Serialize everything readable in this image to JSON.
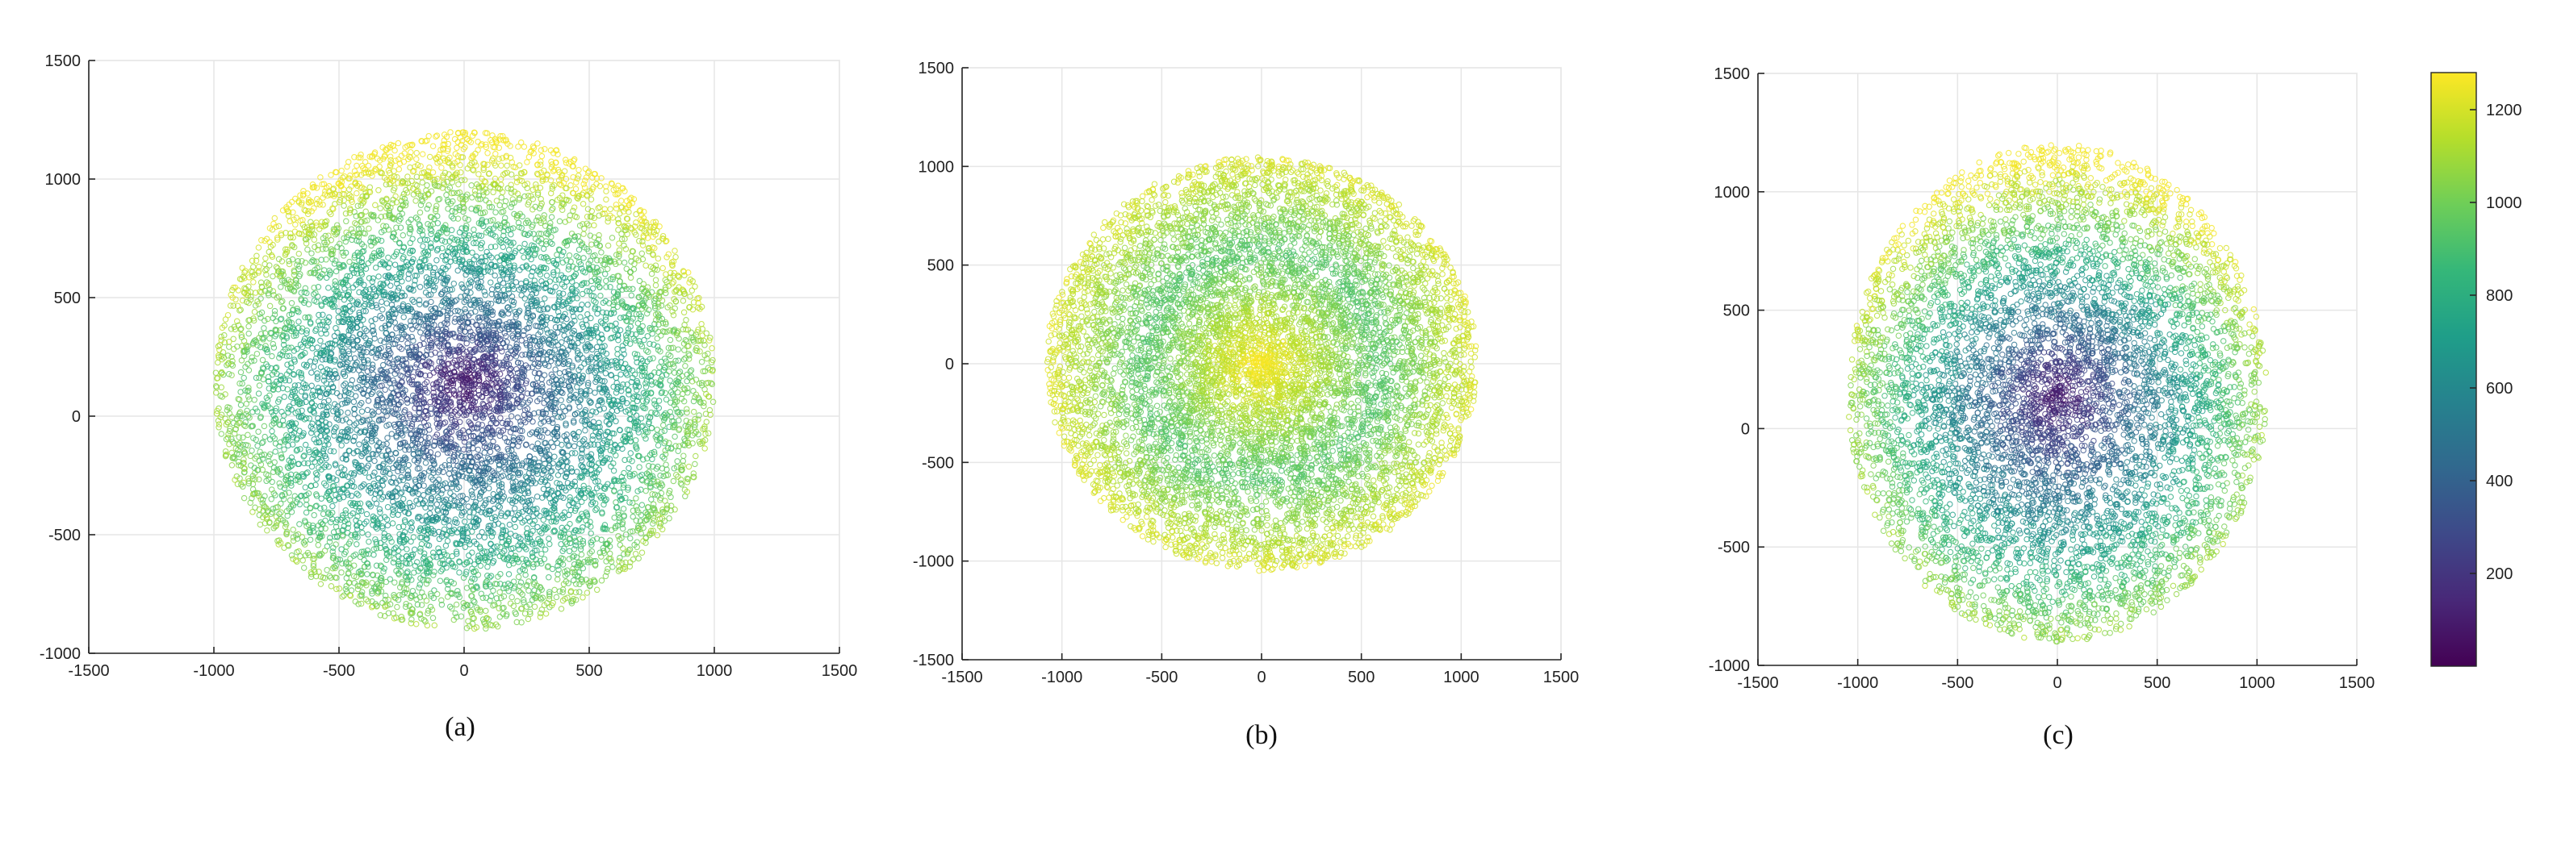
{
  "figure": {
    "colormap": "viridis",
    "colors": [
      "#440154",
      "#482878",
      "#3e4989",
      "#31688e",
      "#26828e",
      "#1f9e89",
      "#35b779",
      "#6ece58",
      "#b5de2b",
      "#fde725"
    ],
    "colorbar": {
      "min": 0,
      "max": 1280,
      "ticks": [
        "200",
        "400",
        "600",
        "800",
        "1000",
        "1200"
      ],
      "tick_values": [
        200,
        400,
        600,
        800,
        1000,
        1200
      ]
    }
  },
  "chart_data": [
    {
      "type": "scatter",
      "caption": "(a)",
      "xlim": [
        -1500,
        1500
      ],
      "ylim": [
        -1000,
        1500
      ],
      "xticks": [
        "-1500",
        "-1000",
        "-500",
        "0",
        "500",
        "1000",
        "1500"
      ],
      "xtick_values": [
        -1500,
        -1000,
        -500,
        0,
        500,
        1000,
        1500
      ],
      "yticks": [
        "-1000",
        "-500",
        "0",
        "500",
        "1000",
        "1500"
      ],
      "ytick_values": [
        -1000,
        -500,
        0,
        500,
        1000,
        1500
      ],
      "grid": true,
      "cloud": {
        "center": [
          0,
          150
        ],
        "radius_x": 1000,
        "radius_y": 1050,
        "color_min": 80,
        "color_max": 1260,
        "color_pattern": "low at center-top, high at top rim",
        "point_count_estimate": 8000
      }
    },
    {
      "type": "scatter",
      "caption": "(b)",
      "xlim": [
        -1500,
        1500
      ],
      "ylim": [
        -1500,
        1500
      ],
      "xticks": [
        "-1500",
        "-1000",
        "-500",
        "0",
        "500",
        "1000",
        "1500"
      ],
      "xtick_values": [
        -1500,
        -1000,
        -500,
        0,
        500,
        1000,
        1500
      ],
      "yticks": [
        "-1500",
        "-1000",
        "-500",
        "0",
        "500",
        "1000",
        "1500"
      ],
      "ytick_values": [
        -1500,
        -1000,
        -500,
        0,
        500,
        1000,
        1500
      ],
      "grid": true,
      "cloud": {
        "center": [
          0,
          0
        ],
        "radius_x": 1080,
        "radius_y": 1050,
        "color_min": 500,
        "color_max": 1280,
        "color_pattern": "high at center and rim, mid in between",
        "point_count_estimate": 8000
      }
    },
    {
      "type": "scatter",
      "caption": "(c)",
      "xlim": [
        -1500,
        1500
      ],
      "ylim": [
        -1000,
        1500
      ],
      "xticks": [
        "-1500",
        "-1000",
        "-500",
        "0",
        "500",
        "1000",
        "1500"
      ],
      "xtick_values": [
        -1500,
        -1000,
        -500,
        0,
        500,
        1000,
        1500
      ],
      "yticks": [
        "-1000",
        "-500",
        "0",
        "500",
        "1000",
        "1500"
      ],
      "ytick_values": [
        -1000,
        -500,
        0,
        500,
        1000,
        1500
      ],
      "grid": true,
      "cloud": {
        "center": [
          0,
          150
        ],
        "radius_x": 1050,
        "radius_y": 1050,
        "color_min": 80,
        "color_max": 1260,
        "color_pattern": "low at center, high at top rim",
        "point_count_estimate": 6500
      }
    }
  ]
}
